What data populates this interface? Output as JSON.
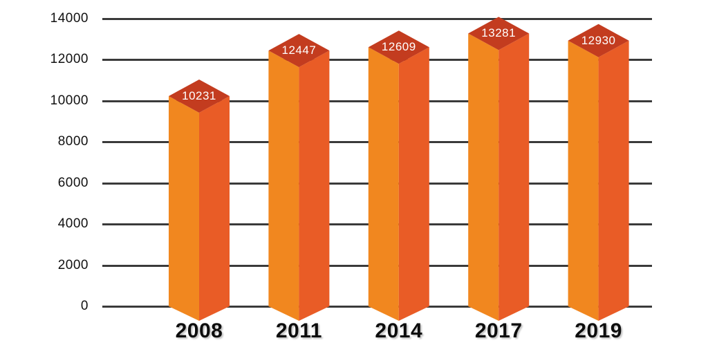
{
  "page": {
    "background": "#FFFFFF"
  },
  "chart_data": {
    "type": "bar",
    "title": "",
    "xlabel": "",
    "ylabel": "",
    "categories": [
      "2008",
      "2011",
      "2014",
      "2017",
      "2019"
    ],
    "values": [
      10231,
      12447,
      12609,
      13281,
      12930
    ],
    "value_labels": [
      "10231",
      "12447",
      "12609",
      "13281",
      "12930"
    ],
    "ylim": [
      0,
      14000
    ],
    "ytick_step": 2000,
    "yticks": [
      14000,
      12000,
      10000,
      8000,
      6000,
      4000,
      2000,
      0
    ],
    "ytick_labels": [
      "14000",
      "12000",
      "10000",
      "8000",
      "6000",
      "4000",
      "2000",
      "0"
    ],
    "grid": true,
    "legend": "none",
    "bar_style": "3d-column-with-diamond-cap",
    "colors": {
      "bar_left_face": "#F1871F",
      "bar_right_face": "#E95C26",
      "bar_top_cap": "#C33C1F",
      "value_label": "#FFFFFF",
      "gridline": "#3A3A3A",
      "tick_label": "#111111",
      "category_label": "#0D0D0D",
      "background": "#FFFFFF"
    }
  }
}
